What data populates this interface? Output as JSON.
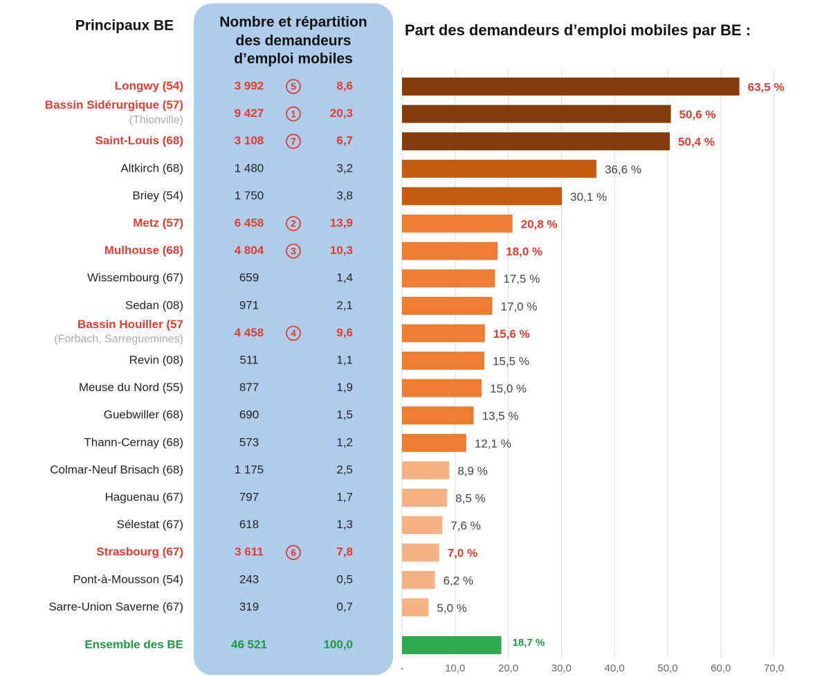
{
  "chart_data": {
    "type": "barh",
    "title": "Part des demandeurs d’emploi mobiles par BE :",
    "left_header": "Principaux BE",
    "panel_header": [
      "Nombre et répartition",
      "des demandeurs",
      "d’emploi mobiles"
    ],
    "categories": [
      "Longwy (54)",
      "Bassin Sidérurgique (57)",
      "Saint-Louis (68)",
      "Altkirch (68)",
      "Briey (54)",
      "Metz (57)",
      "Mulhouse (68)",
      "Wissembourg (67)",
      "Sedan (08)",
      "Bassin Houiller (57",
      "Revin (08)",
      "Meuse du Nord (55)",
      "Guebwiller (68)",
      "Thann-Cernay (68)",
      "Colmar-Neuf Brisach (68)",
      "Haguenau (67)",
      "Sélestat (67)",
      "Strasbourg (67)",
      "Pont-à-Mousson (54)",
      "Sarre-Union Saverne (67)"
    ],
    "sublabels": [
      null,
      "(Thionville)",
      null,
      null,
      null,
      null,
      null,
      null,
      null,
      "(Forbach, Sarreguemines)",
      null,
      null,
      null,
      null,
      null,
      null,
      null,
      null,
      null,
      null
    ],
    "counts": [
      "3 992",
      "9 427",
      "3 108",
      "1 480",
      "1 750",
      "6 458",
      "4 804",
      "659",
      "971",
      "4 458",
      "511",
      "877",
      "690",
      "573",
      "1 175",
      "797",
      "618",
      "3 611",
      "243",
      "319"
    ],
    "ranks": [
      "5",
      "1",
      "7",
      null,
      null,
      "2",
      "3",
      null,
      null,
      "4",
      null,
      null,
      null,
      null,
      null,
      null,
      null,
      "6",
      null,
      null
    ],
    "shares": [
      "8,6",
      "20,3",
      "6,7",
      "3,2",
      "3,8",
      "13,9",
      "10,3",
      "1,4",
      "2,1",
      "9,6",
      "1,1",
      "1,9",
      "1,5",
      "1,2",
      "2,5",
      "1,7",
      "1,3",
      "7,8",
      "0,5",
      "0,7"
    ],
    "values": [
      63.5,
      50.6,
      50.4,
      36.6,
      30.1,
      20.8,
      18.0,
      17.5,
      17.0,
      15.6,
      15.5,
      15.0,
      13.5,
      12.1,
      8.9,
      8.5,
      7.6,
      7.0,
      6.2,
      5.0
    ],
    "value_labels": [
      "63,5 %",
      "50,6 %",
      "50,4 %",
      "36,6 %",
      "30,1 %",
      "20,8 %",
      "18,0 %",
      "17,5 %",
      "17,0 %",
      "15,6 %",
      "15,5 %",
      "15,0 %",
      "13,5 %",
      "12,1 %",
      "8,9 %",
      "8,5 %",
      "7,6 %",
      "7,0 %",
      "6,2 %",
      "5,0 %"
    ],
    "highlight": [
      true,
      true,
      true,
      false,
      false,
      true,
      true,
      false,
      false,
      true,
      false,
      false,
      false,
      false,
      false,
      false,
      false,
      true,
      false,
      false
    ],
    "colors": [
      "#843C0C",
      "#843C0C",
      "#843C0C",
      "#C55A11",
      "#C55A11",
      "#ED7D31",
      "#ED7D31",
      "#ED7D31",
      "#ED7D31",
      "#ED7D31",
      "#ED7D31",
      "#ED7D31",
      "#ED7D31",
      "#ED7D31",
      "#F4B183",
      "#F4B183",
      "#F4B183",
      "#F4B183",
      "#F4B183",
      "#F4B183"
    ],
    "total": {
      "name": "Ensemble des BE",
      "count": "46 521",
      "share": "100,0",
      "value": 18.7,
      "value_label": "18,7 %",
      "color": "#2EAA4F"
    },
    "xlim": [
      0,
      78
    ],
    "xticks": [
      {
        "value": 0,
        "label": "-"
      },
      {
        "value": 10,
        "label": "10,0"
      },
      {
        "value": 20,
        "label": "20,0"
      },
      {
        "value": 30,
        "label": "30,0"
      },
      {
        "value": 40,
        "label": "40,0"
      },
      {
        "value": 50,
        "label": "50,0"
      },
      {
        "value": 60,
        "label": "60,0"
      },
      {
        "value": 70,
        "label": "70,0"
      }
    ],
    "grid": true
  }
}
